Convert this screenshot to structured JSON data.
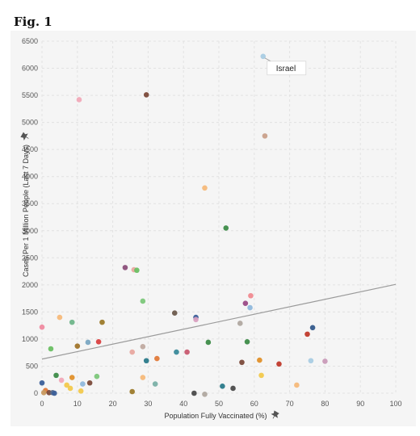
{
  "figure": {
    "title": "Fig. 1"
  },
  "chart_data": {
    "type": "scatter",
    "xlabel": "Population Fully Vaccinated (%)",
    "ylabel": "Cases Per 1 Million People (Last 7 Days)",
    "xlim": [
      0,
      100
    ],
    "ylim": [
      0,
      6500
    ],
    "xticks": [
      0,
      10,
      20,
      30,
      40,
      50,
      60,
      70,
      80,
      90,
      100
    ],
    "yticks": [
      0,
      500,
      1000,
      1500,
      2000,
      2500,
      3000,
      3500,
      4000,
      4500,
      5000,
      5500,
      6000,
      6500
    ],
    "grid": true,
    "trend_line": {
      "x": [
        0,
        100
      ],
      "y": [
        630,
        2010
      ],
      "color": "#9a9a9a"
    },
    "annotations": [
      {
        "text": "Israel",
        "x": 62.5,
        "y": 6220
      }
    ],
    "points": [
      {
        "x": 62.5,
        "y": 6220,
        "color": "#a9cce3"
      },
      {
        "x": 10.5,
        "y": 5420,
        "color": "#f1a9b8"
      },
      {
        "x": 29.5,
        "y": 5510,
        "color": "#7b4a3a"
      },
      {
        "x": 63,
        "y": 4750,
        "color": "#c9a08a"
      },
      {
        "x": 46,
        "y": 3790,
        "color": "#f5b97a"
      },
      {
        "x": 52,
        "y": 3050,
        "color": "#3d8b48"
      },
      {
        "x": 23.5,
        "y": 2320,
        "color": "#8b4f7a"
      },
      {
        "x": 26,
        "y": 2280,
        "color": "#e8a8a0"
      },
      {
        "x": 26.8,
        "y": 2270,
        "color": "#6abf63"
      },
      {
        "x": 59,
        "y": 1800,
        "color": "#f08a90"
      },
      {
        "x": 28.5,
        "y": 1700,
        "color": "#7cc77a"
      },
      {
        "x": 57.5,
        "y": 1660,
        "color": "#9a4a86"
      },
      {
        "x": 58.8,
        "y": 1580,
        "color": "#8fb8dc"
      },
      {
        "x": 37.5,
        "y": 1480,
        "color": "#6d5b4d"
      },
      {
        "x": 5,
        "y": 1400,
        "color": "#f5b97a"
      },
      {
        "x": 43.5,
        "y": 1400,
        "color": "#3b5f99"
      },
      {
        "x": 43.5,
        "y": 1360,
        "color": "#d9a0c0"
      },
      {
        "x": 8.5,
        "y": 1310,
        "color": "#6fb58a"
      },
      {
        "x": 17,
        "y": 1310,
        "color": "#9c7a2a"
      },
      {
        "x": 56,
        "y": 1290,
        "color": "#b0a8a0"
      },
      {
        "x": 0,
        "y": 1220,
        "color": "#ef8aa0"
      },
      {
        "x": 76.5,
        "y": 1210,
        "color": "#345a8c"
      },
      {
        "x": 75,
        "y": 1090,
        "color": "#c0392b"
      },
      {
        "x": 2.5,
        "y": 820,
        "color": "#6abf63"
      },
      {
        "x": 10,
        "y": 870,
        "color": "#a0742a"
      },
      {
        "x": 13,
        "y": 940,
        "color": "#7aa6c2"
      },
      {
        "x": 16,
        "y": 950,
        "color": "#d94040"
      },
      {
        "x": 28.5,
        "y": 860,
        "color": "#c0aaa0"
      },
      {
        "x": 25.5,
        "y": 760,
        "color": "#e8a8a0"
      },
      {
        "x": 38,
        "y": 760,
        "color": "#3a8a9a"
      },
      {
        "x": 41,
        "y": 760,
        "color": "#c85a70"
      },
      {
        "x": 47,
        "y": 940,
        "color": "#3d8b48"
      },
      {
        "x": 58,
        "y": 950,
        "color": "#3d8b48"
      },
      {
        "x": 29.5,
        "y": 600,
        "color": "#2a7a8a"
      },
      {
        "x": 32.5,
        "y": 640,
        "color": "#e07a3a"
      },
      {
        "x": 56.5,
        "y": 570,
        "color": "#7b4a3a"
      },
      {
        "x": 61.5,
        "y": 610,
        "color": "#e0902a"
      },
      {
        "x": 67,
        "y": 540,
        "color": "#c0392b"
      },
      {
        "x": 76,
        "y": 600,
        "color": "#a9cce3"
      },
      {
        "x": 80,
        "y": 590,
        "color": "#c99ab8"
      },
      {
        "x": 4,
        "y": 330,
        "color": "#3d8b48"
      },
      {
        "x": 15.5,
        "y": 310,
        "color": "#7cc77a"
      },
      {
        "x": 8.5,
        "y": 290,
        "color": "#e0902a"
      },
      {
        "x": 5.5,
        "y": 240,
        "color": "#f1a9b8"
      },
      {
        "x": 28.5,
        "y": 290,
        "color": "#f5b97a"
      },
      {
        "x": 62,
        "y": 330,
        "color": "#f2c94c"
      },
      {
        "x": 0,
        "y": 190,
        "color": "#3b5f99"
      },
      {
        "x": 7,
        "y": 150,
        "color": "#f2c94c"
      },
      {
        "x": 11.5,
        "y": 170,
        "color": "#8fb8dc"
      },
      {
        "x": 13.5,
        "y": 190,
        "color": "#7b4a3a"
      },
      {
        "x": 32,
        "y": 170,
        "color": "#7ab0a6"
      },
      {
        "x": 51,
        "y": 130,
        "color": "#2a7a8a"
      },
      {
        "x": 72,
        "y": 150,
        "color": "#f5b97a"
      },
      {
        "x": 8,
        "y": 90,
        "color": "#f2c94c"
      },
      {
        "x": 11,
        "y": 40,
        "color": "#f2c94c"
      },
      {
        "x": 54,
        "y": 90,
        "color": "#4a4a4a"
      },
      {
        "x": 1,
        "y": 50,
        "color": "#e07a3a"
      },
      {
        "x": 0.5,
        "y": 10,
        "color": "#c89a60"
      },
      {
        "x": 2,
        "y": 10,
        "color": "#7b4a3a"
      },
      {
        "x": 3,
        "y": 10,
        "color": "#5a6a8a"
      },
      {
        "x": 3.5,
        "y": 0,
        "color": "#3b5f99"
      },
      {
        "x": 25.5,
        "y": 30,
        "color": "#9c7a2a"
      },
      {
        "x": 43,
        "y": 0,
        "color": "#4a4a4a"
      },
      {
        "x": 46,
        "y": -20,
        "color": "#b0a8a0"
      }
    ]
  }
}
